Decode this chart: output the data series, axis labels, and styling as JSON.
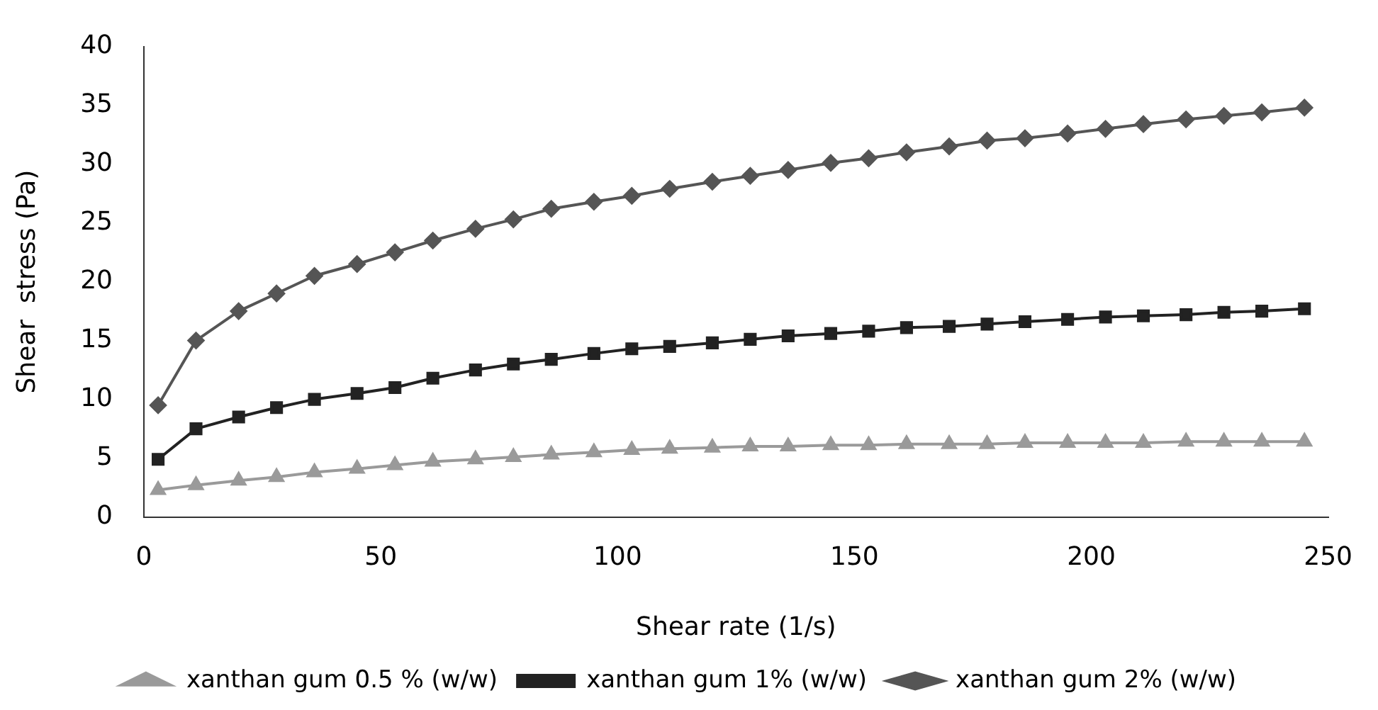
{
  "chart_data": {
    "type": "line",
    "xlabel": "Shear rate (1/s)",
    "ylabel": "Shear  stress (Pa)",
    "x": [
      3,
      11,
      20,
      28,
      36,
      45,
      53,
      61,
      70,
      78,
      86,
      95,
      103,
      111,
      120,
      128,
      136,
      145,
      153,
      161,
      170,
      178,
      186,
      195,
      203,
      211,
      220,
      228,
      236,
      245
    ],
    "series": [
      {
        "name": "xanthan gum 0.5 % (w/w)",
        "color": "#9a9a9a",
        "marker": "triangle",
        "values": [
          2.3,
          2.7,
          3.1,
          3.4,
          3.8,
          4.1,
          4.4,
          4.7,
          4.9,
          5.1,
          5.3,
          5.5,
          5.7,
          5.8,
          5.9,
          6.0,
          6.0,
          6.1,
          6.1,
          6.2,
          6.2,
          6.2,
          6.3,
          6.3,
          6.3,
          6.3,
          6.4,
          6.4,
          6.4,
          6.4
        ]
      },
      {
        "name": "xanthan gum 1% (w/w)",
        "color": "#222222",
        "marker": "square",
        "values": [
          4.9,
          7.5,
          8.5,
          9.3,
          10,
          10.5,
          11,
          11.8,
          12.5,
          13,
          13.4,
          13.9,
          14.3,
          14.5,
          14.8,
          15.1,
          15.4,
          15.6,
          15.8,
          16.1,
          16.2,
          16.4,
          16.6,
          16.8,
          17,
          17.1,
          17.2,
          17.4,
          17.5,
          17.7
        ]
      },
      {
        "name": "xanthan gum 2% (w/w)",
        "color": "#555555",
        "marker": "diamond",
        "values": [
          9.5,
          15,
          17.5,
          19,
          20.5,
          21.5,
          22.5,
          23.5,
          24.5,
          25.3,
          26.2,
          26.8,
          27.3,
          27.9,
          28.5,
          29,
          29.5,
          30.1,
          30.5,
          31,
          31.5,
          32,
          32.2,
          32.6,
          33,
          33.4,
          33.8,
          34.1,
          34.4,
          34.8
        ]
      }
    ],
    "xlim": [
      0,
      250
    ],
    "xticks": [
      0,
      50,
      100,
      150,
      200,
      250
    ],
    "ylim": [
      0,
      40
    ],
    "yticks": [
      0,
      5,
      10,
      15,
      20,
      25,
      30,
      35,
      40
    ],
    "grid": false,
    "legend": "bottom"
  }
}
